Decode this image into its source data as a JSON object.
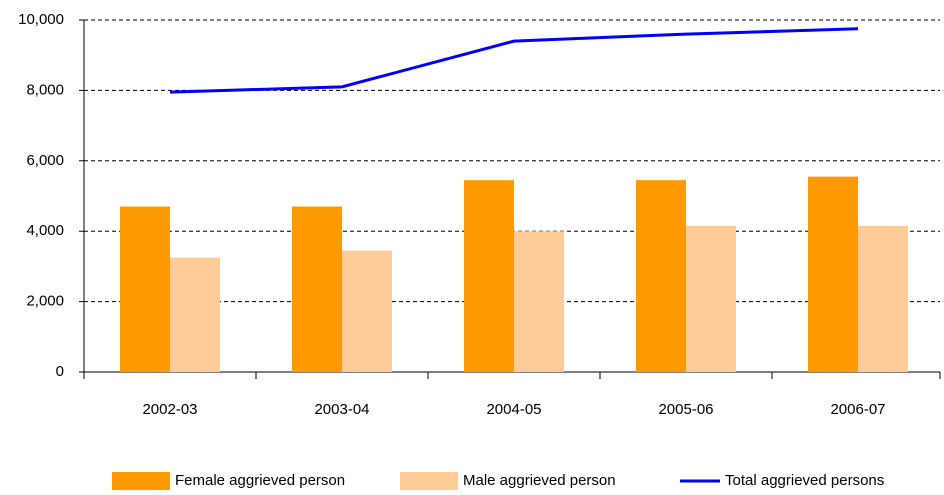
{
  "chart_data": {
    "type": "bar",
    "categories": [
      "2002-03",
      "2003-04",
      "2004-05",
      "2005-06",
      "2006-07"
    ],
    "series": [
      {
        "name": "Female aggrieved person",
        "type": "bar",
        "color": "#ff9900",
        "values": [
          4700,
          4700,
          5450,
          5450,
          5550
        ]
      },
      {
        "name": "Male aggrieved person",
        "type": "bar",
        "color": "#ffcc99",
        "values": [
          3250,
          3450,
          4000,
          4150,
          4150
        ]
      },
      {
        "name": "Total aggrieved persons",
        "type": "line",
        "color": "#0000ff",
        "values": [
          7950,
          8100,
          9400,
          9600,
          9750
        ]
      }
    ],
    "ylim": [
      0,
      10000
    ],
    "yticks": [
      0,
      {
        "value": 2000,
        "label": "2,000"
      },
      {
        "value": 4000,
        "label": "4,000"
      },
      {
        "value": 6000,
        "label": "6,000"
      },
      {
        "value": 8000,
        "label": "8,000"
      },
      {
        "value": 10000,
        "label": "10,000"
      }
    ],
    "grid": true,
    "legend": "bottom"
  }
}
